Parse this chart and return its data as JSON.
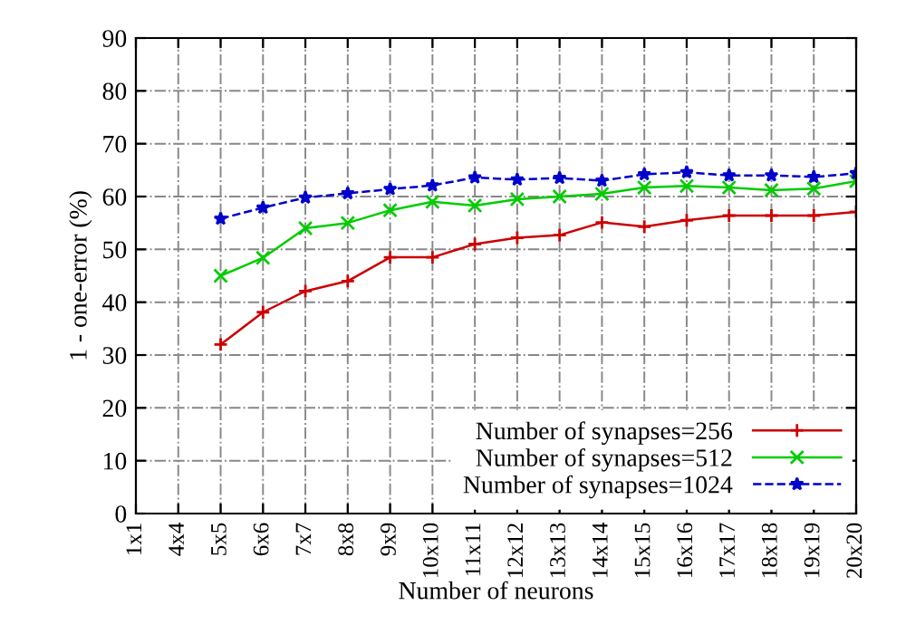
{
  "chart_data": {
    "type": "line",
    "xlabel": "Number of neurons",
    "ylabel": "1 - one-error (%)",
    "categories": [
      "1x1",
      "4x4",
      "5x5",
      "6x6",
      "7x7",
      "8x8",
      "9x9",
      "10x10",
      "11x11",
      "12x12",
      "13x13",
      "14x14",
      "15x15",
      "16x16",
      "17x17",
      "18x18",
      "19x19",
      "20x20"
    ],
    "ylim": [
      0,
      90
    ],
    "yticks": [
      0,
      10,
      20,
      30,
      40,
      50,
      60,
      70,
      80,
      90
    ],
    "grid": true,
    "legend": "bottom right",
    "series": [
      {
        "name": "Number of synapses=256",
        "color": "#cc0000",
        "marker": "plus",
        "line_style": "solid",
        "values": [
          null,
          null,
          32.0,
          38.1,
          42.1,
          44.0,
          48.5,
          48.5,
          51.0,
          52.2,
          52.7,
          55.1,
          54.3,
          55.5,
          56.4,
          56.4,
          56.4,
          57.1
        ]
      },
      {
        "name": "Number of synapses=512",
        "color": "#00cc00",
        "marker": "cross",
        "line_style": "solid",
        "values": [
          null,
          null,
          45.0,
          48.4,
          54.0,
          55.0,
          57.4,
          59.0,
          58.3,
          59.5,
          60.0,
          60.5,
          61.7,
          62.0,
          61.7,
          61.2,
          61.5,
          62.9
        ]
      },
      {
        "name": "Number of synapses=1024",
        "color": "#0000cc",
        "marker": "star",
        "line_style": "dashed",
        "values": [
          null,
          null,
          55.8,
          57.9,
          59.8,
          60.6,
          61.4,
          62.1,
          63.6,
          63.2,
          63.5,
          63.0,
          64.2,
          64.6,
          64.0,
          64.0,
          63.7,
          64.4
        ]
      }
    ]
  }
}
